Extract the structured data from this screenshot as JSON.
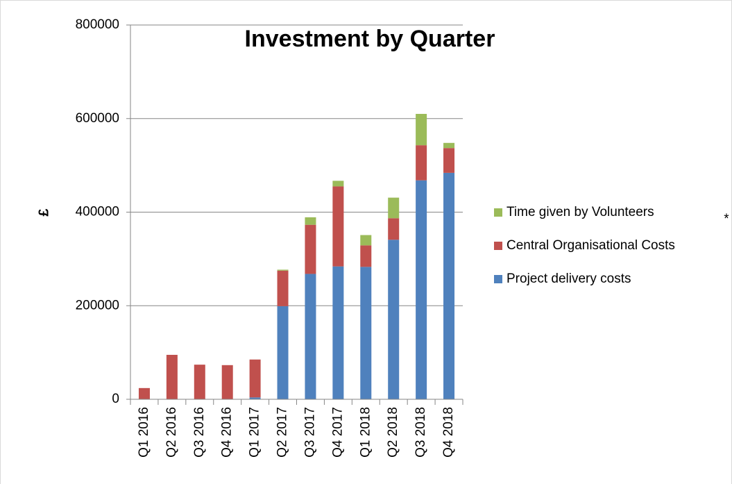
{
  "chart_data": {
    "type": "stacked_bar",
    "title": "Investment by Quarter",
    "y_label": "£",
    "annotation": "*",
    "categories": [
      "Q1 2016",
      "Q2 2016",
      "Q3 2016",
      "Q4 2016",
      "Q1 2017",
      "Q2 2017",
      "Q3 2017",
      "Q4 2017",
      "Q1 2018",
      "Q2 2018",
      "Q3 2018",
      "Q4 2018"
    ],
    "series": [
      {
        "name": "Project delivery costs",
        "color": "#4f81bd",
        "values": [
          0,
          0,
          0,
          0,
          4000,
          199000,
          268000,
          284000,
          283000,
          341000,
          468000,
          484000
        ]
      },
      {
        "name": "Central Organisational Costs",
        "color": "#c0504d",
        "values": [
          24000,
          95000,
          74000,
          73000,
          81000,
          76000,
          105000,
          171000,
          46000,
          46000,
          75000,
          53000
        ]
      },
      {
        "name": "Time given by Volunteers",
        "color": "#9bbb59",
        "values": [
          0,
          0,
          0,
          0,
          0,
          2000,
          16000,
          12000,
          22000,
          44000,
          67000,
          11000
        ]
      }
    ],
    "ylim": [
      0,
      800000
    ],
    "yticks": [
      0,
      200000,
      400000,
      600000,
      800000
    ],
    "grid": true,
    "legend": "right"
  }
}
